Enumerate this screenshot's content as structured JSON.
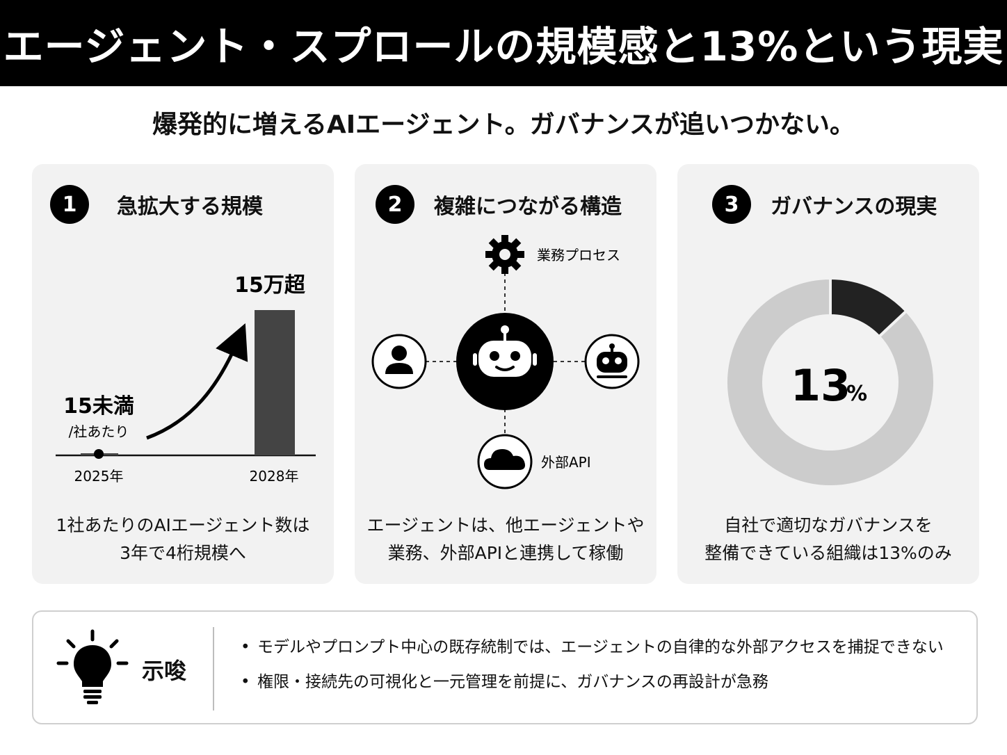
{
  "header": {
    "title": "エージェント・スプロールの規模感と13%という現実"
  },
  "subtitle": "爆発的に増えるAIエージェント。ガバナンスが追いつかない。",
  "panels": [
    {
      "number": "1",
      "title": "急拡大する規模",
      "desc": [
        "1社あたりのAIエージェント数は",
        "3年で4桁規模へ"
      ]
    },
    {
      "number": "2",
      "title": "複雑につながる構造",
      "desc": [
        "エージェントは、他エージェントや",
        "業務、外部APIと連携して稼働"
      ]
    },
    {
      "number": "3",
      "title": "ガバナンスの現実",
      "desc": [
        "自社で適切なガバナンスを",
        "整備できている組織は13%のみ"
      ]
    }
  ],
  "chart_data": [
    {
      "type": "bar",
      "categories": [
        "2025年",
        "2028年"
      ],
      "value_labels": [
        "15未満",
        "15万超"
      ],
      "value_sublabel": "/社あたり",
      "trend": "up-arrow"
    },
    {
      "type": "pie",
      "variant": "donut",
      "values": [
        13,
        87
      ],
      "center_value": "13",
      "center_unit": "%",
      "colors": [
        "#222222",
        "#cccccc"
      ]
    }
  ],
  "network": {
    "center_icon": "robot-icon",
    "nodes": [
      {
        "icon": "gear-icon",
        "label": "業務プロセス"
      },
      {
        "icon": "user-icon",
        "label": ""
      },
      {
        "icon": "robot-icon",
        "label": ""
      },
      {
        "icon": "cloud-icon",
        "label": "外部API"
      }
    ]
  },
  "implication": {
    "icon": "lightbulb-icon",
    "title": "示唆",
    "points": [
      "モデルやプロンプト中心の既存統制では、エージェントの自律的な外部アクセスを捕捉できない",
      "権限・接続先の可視化と一元管理を前提に、ガバナンスの再設計が急務"
    ]
  }
}
